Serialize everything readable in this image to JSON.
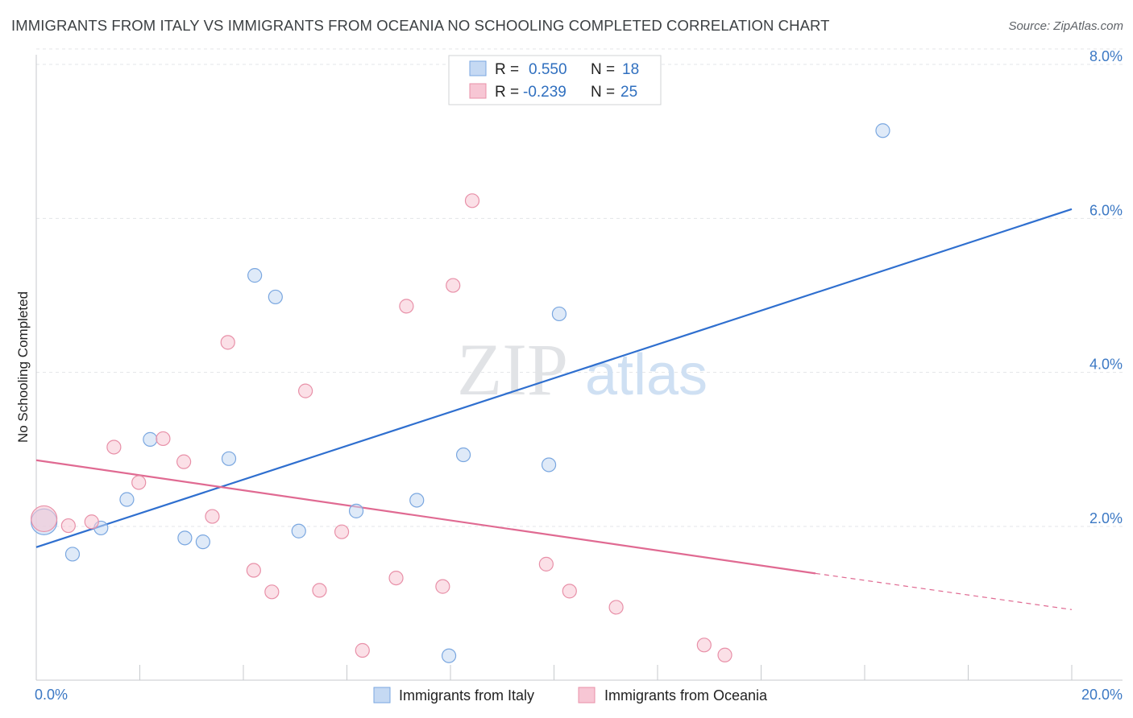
{
  "title": "IMMIGRANTS FROM ITALY VS IMMIGRANTS FROM OCEANIA NO SCHOOLING COMPLETED CORRELATION CHART",
  "source": "Source: ZipAtlas.com",
  "watermark": {
    "zip": "ZIP",
    "atlas": "atlas"
  },
  "legend_top": {
    "rows": [
      {
        "r_label": "R =",
        "r_value": "0.550",
        "n_label": "N =",
        "n_value": "18"
      },
      {
        "r_label": "R =",
        "r_value": "-0.239",
        "n_label": "N =",
        "n_value": "25"
      }
    ]
  },
  "chart_data": {
    "type": "scatter",
    "title": "IMMIGRANTS FROM ITALY VS IMMIGRANTS FROM OCEANIA NO SCHOOLING COMPLETED CORRELATION CHART",
    "xlabel": "",
    "ylabel": "No Schooling Completed",
    "xlim": [
      0,
      20
    ],
    "ylim": [
      0,
      8.3
    ],
    "x_tick_labels": [
      "0.0%",
      "20.0%"
    ],
    "y_ticks": [
      2,
      4,
      6,
      8
    ],
    "y_tick_labels": [
      "2.0%",
      "4.0%",
      "6.0%",
      "8.0%"
    ],
    "grid": true,
    "legend_position": "bottom",
    "series": [
      {
        "name": "Immigrants from Italy",
        "color": "#7aa7e0",
        "fill": "#c5d9f3",
        "points": [
          {
            "x": 0.15,
            "y": 2.06,
            "big": true
          },
          {
            "x": 0.7,
            "y": 1.64
          },
          {
            "x": 1.25,
            "y": 1.98
          },
          {
            "x": 1.75,
            "y": 2.35
          },
          {
            "x": 2.2,
            "y": 3.13
          },
          {
            "x": 2.87,
            "y": 1.85
          },
          {
            "x": 3.22,
            "y": 1.8
          },
          {
            "x": 3.72,
            "y": 2.88
          },
          {
            "x": 4.22,
            "y": 5.26
          },
          {
            "x": 4.62,
            "y": 4.98
          },
          {
            "x": 5.07,
            "y": 1.94
          },
          {
            "x": 6.18,
            "y": 2.2
          },
          {
            "x": 7.35,
            "y": 2.34
          },
          {
            "x": 7.97,
            "y": 0.32
          },
          {
            "x": 8.25,
            "y": 2.93
          },
          {
            "x": 9.9,
            "y": 2.8
          },
          {
            "x": 10.1,
            "y": 4.76
          },
          {
            "x": 16.35,
            "y": 7.14
          }
        ],
        "trend": {
          "x": [
            0,
            20
          ],
          "y": [
            1.73,
            6.12
          ]
        }
      },
      {
        "name": "Immigrants from Oceania",
        "color": "#e890a8",
        "fill": "#f7c6d4",
        "points": [
          {
            "x": 0.15,
            "y": 2.1,
            "big": true
          },
          {
            "x": 0.62,
            "y": 2.01
          },
          {
            "x": 1.07,
            "y": 2.06
          },
          {
            "x": 1.5,
            "y": 3.03
          },
          {
            "x": 1.98,
            "y": 2.57
          },
          {
            "x": 2.45,
            "y": 3.14
          },
          {
            "x": 2.85,
            "y": 2.84
          },
          {
            "x": 3.4,
            "y": 2.13
          },
          {
            "x": 3.7,
            "y": 4.39
          },
          {
            "x": 4.2,
            "y": 1.43
          },
          {
            "x": 4.55,
            "y": 1.15
          },
          {
            "x": 5.2,
            "y": 3.76
          },
          {
            "x": 5.47,
            "y": 1.17
          },
          {
            "x": 5.9,
            "y": 1.93
          },
          {
            "x": 6.3,
            "y": 0.39
          },
          {
            "x": 6.95,
            "y": 1.33
          },
          {
            "x": 7.15,
            "y": 4.86
          },
          {
            "x": 7.85,
            "y": 1.22
          },
          {
            "x": 8.05,
            "y": 5.13
          },
          {
            "x": 8.42,
            "y": 6.23
          },
          {
            "x": 9.85,
            "y": 1.51
          },
          {
            "x": 10.3,
            "y": 1.16
          },
          {
            "x": 11.2,
            "y": 0.95
          },
          {
            "x": 12.9,
            "y": 0.46
          },
          {
            "x": 13.3,
            "y": 0.33
          }
        ],
        "trend": {
          "x": [
            0,
            15.05
          ],
          "y": [
            2.86,
            1.39
          ]
        },
        "trend_dashed": {
          "x": [
            15.05,
            20
          ],
          "y": [
            1.39,
            0.92
          ]
        }
      }
    ]
  }
}
